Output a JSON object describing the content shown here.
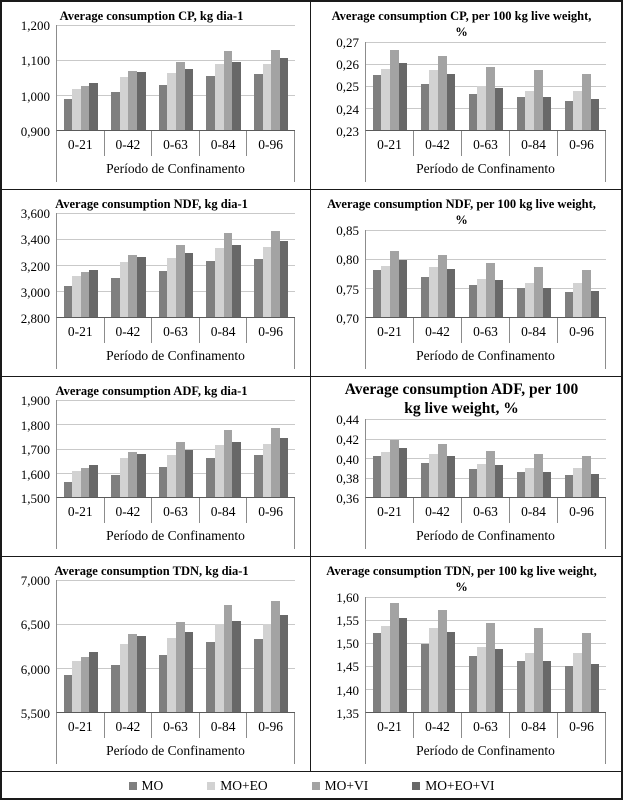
{
  "xlabel": "Período de Confinamento",
  "categories": [
    "0-21",
    "0-42",
    "0-63",
    "0-84",
    "0-96"
  ],
  "legend": {
    "items": [
      {
        "label": "MO",
        "color": "#7f7f7f"
      },
      {
        "label": "MO+EO",
        "color": "#d2d2d2"
      },
      {
        "label": "MO+VI",
        "color": "#a3a3a3"
      },
      {
        "label": "MO+EO+VI",
        "color": "#686868"
      }
    ]
  },
  "chart_data": [
    {
      "id": "cp-kg",
      "type": "bar",
      "title": "Average consumption CP, kg dia-1",
      "xlabel": "Período de Confinamento",
      "categories": [
        "0-21",
        "0-42",
        "0-63",
        "0-84",
        "0-96"
      ],
      "ylim": [
        0.9,
        1.2
      ],
      "yticks": [
        "0,900",
        "1,000",
        "1,100",
        "1,200"
      ],
      "grid": true,
      "legend_position": "bottom-shared",
      "series": [
        {
          "name": "MO",
          "values": [
            0.99,
            1.01,
            1.03,
            1.055,
            1.06
          ]
        },
        {
          "name": "MO+EO",
          "values": [
            1.018,
            1.052,
            1.062,
            1.088,
            1.088
          ]
        },
        {
          "name": "MO+VI",
          "values": [
            1.027,
            1.07,
            1.095,
            1.125,
            1.13
          ]
        },
        {
          "name": "MO+EO+VI",
          "values": [
            1.035,
            1.065,
            1.075,
            1.095,
            1.105
          ]
        }
      ]
    },
    {
      "id": "cp-pct",
      "type": "bar",
      "title": "Average consumption CP, per 100 kg live weight, %",
      "xlabel": "Período de Confinamento",
      "categories": [
        "0-21",
        "0-42",
        "0-63",
        "0-84",
        "0-96"
      ],
      "ylim": [
        0.23,
        0.27
      ],
      "yticks": [
        "0,23",
        "0,24",
        "0,25",
        "0,26",
        "0,27"
      ],
      "grid": true,
      "legend_position": "bottom-shared",
      "series": [
        {
          "name": "MO",
          "values": [
            0.255,
            0.251,
            0.2465,
            0.245,
            0.243
          ]
        },
        {
          "name": "MO+EO",
          "values": [
            0.2575,
            0.257,
            0.25,
            0.2475,
            0.2475
          ]
        },
        {
          "name": "MO+VI",
          "values": [
            0.266,
            0.2635,
            0.2585,
            0.257,
            0.2552
          ]
        },
        {
          "name": "MO+EO+VI",
          "values": [
            0.2605,
            0.2555,
            0.249,
            0.245,
            0.244
          ]
        }
      ]
    },
    {
      "id": "ndf-kg",
      "type": "bar",
      "title": "Average consumption NDF, kg dia-1",
      "xlabel": "Período de Confinamento",
      "categories": [
        "0-21",
        "0-42",
        "0-63",
        "0-84",
        "0-96"
      ],
      "ylim": [
        2.8,
        3.6
      ],
      "yticks": [
        "2,800",
        "3,000",
        "3,200",
        "3,400",
        "3,600"
      ],
      "grid": true,
      "legend_position": "bottom-shared",
      "series": [
        {
          "name": "MO",
          "values": [
            3.04,
            3.1,
            3.155,
            3.235,
            3.25
          ]
        },
        {
          "name": "MO+EO",
          "values": [
            3.12,
            3.225,
            3.255,
            3.335,
            3.34
          ]
        },
        {
          "name": "MO+VI",
          "values": [
            3.145,
            3.275,
            3.355,
            3.45,
            3.465
          ]
        },
        {
          "name": "MO+EO+VI",
          "values": [
            3.165,
            3.265,
            3.29,
            3.355,
            3.385
          ]
        }
      ]
    },
    {
      "id": "ndf-pct",
      "type": "bar",
      "title": "Average consumption NDF, per 100 kg live weight, %",
      "xlabel": "Período de Confinamento",
      "categories": [
        "0-21",
        "0-42",
        "0-63",
        "0-84",
        "0-96"
      ],
      "ylim": [
        0.7,
        0.85
      ],
      "yticks": [
        "0,70",
        "0,75",
        "0,80",
        "0,85"
      ],
      "grid": true,
      "legend_position": "bottom-shared",
      "series": [
        {
          "name": "MO",
          "values": [
            0.781,
            0.769,
            0.755,
            0.75,
            0.743
          ]
        },
        {
          "name": "MO+EO",
          "values": [
            0.788,
            0.786,
            0.766,
            0.758,
            0.758
          ]
        },
        {
          "name": "MO+VI",
          "values": [
            0.814,
            0.807,
            0.792,
            0.786,
            0.781
          ]
        },
        {
          "name": "MO+EO+VI",
          "values": [
            0.797,
            0.782,
            0.763,
            0.749,
            0.745
          ]
        }
      ]
    },
    {
      "id": "adf-kg",
      "type": "bar",
      "title": "Average consumption ADF, kg dia-1",
      "xlabel": "Período de Confinamento",
      "categories": [
        "0-21",
        "0-42",
        "0-63",
        "0-84",
        "0-96"
      ],
      "ylim": [
        1.5,
        1.9
      ],
      "yticks": [
        "1,500",
        "1,600",
        "1,700",
        "1,800",
        "1,900"
      ],
      "grid": true,
      "legend_position": "bottom-shared",
      "series": [
        {
          "name": "MO",
          "values": [
            1.562,
            1.593,
            1.623,
            1.663,
            1.672
          ]
        },
        {
          "name": "MO+EO",
          "values": [
            1.608,
            1.66,
            1.673,
            1.716,
            1.719
          ]
        },
        {
          "name": "MO+VI",
          "values": [
            1.618,
            1.686,
            1.727,
            1.775,
            1.786
          ]
        },
        {
          "name": "MO+EO+VI",
          "values": [
            1.632,
            1.678,
            1.695,
            1.727,
            1.744
          ]
        }
      ]
    },
    {
      "id": "adf-pct",
      "type": "bar",
      "title": "Average consumption ADF, per 100 kg live weight, %",
      "title_large": true,
      "xlabel": "Período de Confinamento",
      "categories": [
        "0-21",
        "0-42",
        "0-63",
        "0-84",
        "0-96"
      ],
      "ylim": [
        0.36,
        0.44
      ],
      "yticks": [
        "0,36",
        "0,38",
        "0,40",
        "0,42",
        "0,44"
      ],
      "grid": true,
      "legend_position": "bottom-shared",
      "series": [
        {
          "name": "MO",
          "values": [
            0.402,
            0.395,
            0.389,
            0.386,
            0.383
          ]
        },
        {
          "name": "MO+EO",
          "values": [
            0.406,
            0.404,
            0.394,
            0.39,
            0.39
          ]
        },
        {
          "name": "MO+VI",
          "values": [
            0.419,
            0.415,
            0.407,
            0.404,
            0.402
          ]
        },
        {
          "name": "MO+EO+VI",
          "values": [
            0.41,
            0.402,
            0.393,
            0.386,
            0.384
          ]
        }
      ]
    },
    {
      "id": "tdn-kg",
      "type": "bar",
      "title": "Average consumption TDN, kg dia-1",
      "xlabel": "Período de Confinamento",
      "categories": [
        "0-21",
        "0-42",
        "0-63",
        "0-84",
        "0-96"
      ],
      "ylim": [
        5.5,
        7.0
      ],
      "yticks": [
        "5,500",
        "6,000",
        "6,500",
        "7,000"
      ],
      "grid": true,
      "legend_position": "bottom-shared",
      "series": [
        {
          "name": "MO",
          "values": [
            5.92,
            6.03,
            6.15,
            6.3,
            6.33
          ]
        },
        {
          "name": "MO+EO",
          "values": [
            6.08,
            6.28,
            6.34,
            6.5,
            6.5
          ]
        },
        {
          "name": "MO+VI",
          "values": [
            6.13,
            6.39,
            6.53,
            6.72,
            6.76
          ]
        },
        {
          "name": "MO+EO+VI",
          "values": [
            6.18,
            6.36,
            6.41,
            6.54,
            6.6
          ]
        }
      ]
    },
    {
      "id": "tdn-pct",
      "type": "bar",
      "title": "Average consumption TDN, per 100 kg live weight, %",
      "xlabel": "Período de Confinamento",
      "categories": [
        "0-21",
        "0-42",
        "0-63",
        "0-84",
        "0-96"
      ],
      "ylim": [
        1.35,
        1.6
      ],
      "yticks": [
        "1,35",
        "1,40",
        "1,45",
        "1,50",
        "1,55",
        "1,60"
      ],
      "grid": true,
      "legend_position": "bottom-shared",
      "series": [
        {
          "name": "MO",
          "values": [
            1.521,
            1.498,
            1.471,
            1.461,
            1.45
          ]
        },
        {
          "name": "MO+EO",
          "values": [
            1.536,
            1.532,
            1.491,
            1.477,
            1.478
          ]
        },
        {
          "name": "MO+VI",
          "values": [
            1.587,
            1.571,
            1.543,
            1.531,
            1.522
          ]
        },
        {
          "name": "MO+EO+VI",
          "values": [
            1.553,
            1.523,
            1.487,
            1.46,
            1.453
          ]
        }
      ]
    }
  ]
}
